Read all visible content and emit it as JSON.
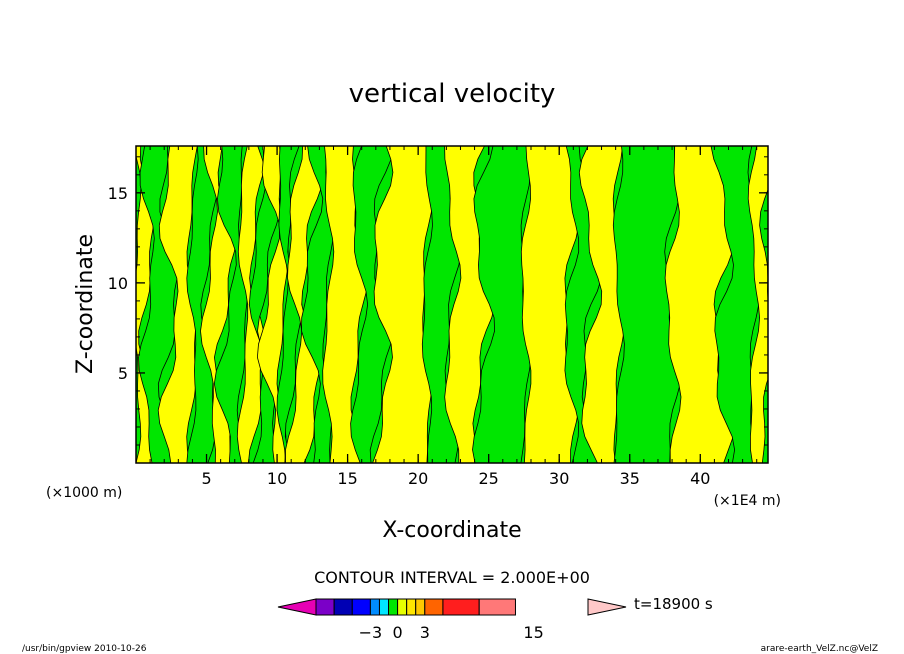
{
  "chart_data": {
    "type": "heatmap",
    "title": "vertical velocity",
    "xlabel": "X-coordinate",
    "ylabel": "Z-coordinate",
    "x_unit_left": "(×1000 m)",
    "x_unit_right": "(×1E4 m)",
    "xlim": [
      0,
      44.8
    ],
    "ylim": [
      0,
      17.6
    ],
    "x_ticks": [
      5,
      10,
      15,
      20,
      25,
      30,
      35,
      40
    ],
    "y_ticks": [
      5,
      10,
      15
    ],
    "contour_interval_label": "CONTOUR INTERVAL = 2.000E+00",
    "time_label": "t=18900 s",
    "colorbar": {
      "tick_labels": [
        {
          "value": -3,
          "label": "−3"
        },
        {
          "value": 0,
          "label": "0"
        },
        {
          "value": 3,
          "label": "3"
        },
        {
          "value": 15,
          "label": "15"
        }
      ],
      "levels": [
        -9,
        -7,
        -5,
        -3,
        -2,
        -1,
        0,
        1,
        2,
        3,
        5,
        9,
        13,
        17,
        21
      ],
      "colors": [
        "#e600b4",
        "#7b00c8",
        "#0000b4",
        "#0000ff",
        "#008cff",
        "#00e6ff",
        "#00e600",
        "#e6ff00",
        "#ffe600",
        "#ffc800",
        "#ff6400",
        "#ff1e1e",
        "#ff7878",
        "#ffc8c8"
      ]
    },
    "field_colors": {
      "negative": "#00e600",
      "positive": "#ffff00"
    },
    "bands": [
      {
        "x": [
          0.0,
          0.8
        ],
        "sign": "positive"
      },
      {
        "x": [
          0.8,
          2.4
        ],
        "sign": "negative"
      },
      {
        "x": [
          2.4,
          4.0
        ],
        "sign": "positive"
      },
      {
        "x": [
          4.0,
          5.2
        ],
        "sign": "negative"
      },
      {
        "x": [
          5.2,
          6.4
        ],
        "sign": "positive"
      },
      {
        "x": [
          6.4,
          7.6
        ],
        "sign": "negative"
      },
      {
        "x": [
          7.6,
          8.6
        ],
        "sign": "positive"
      },
      {
        "x": [
          8.6,
          9.4
        ],
        "sign": "negative"
      },
      {
        "x": [
          9.4,
          10.4
        ],
        "sign": "positive"
      },
      {
        "x": [
          10.4,
          11.2
        ],
        "sign": "negative"
      },
      {
        "x": [
          11.2,
          12.4
        ],
        "sign": "positive"
      },
      {
        "x": [
          12.4,
          13.6
        ],
        "sign": "negative"
      },
      {
        "x": [
          13.6,
          15.8
        ],
        "sign": "positive"
      },
      {
        "x": [
          15.8,
          17.4
        ],
        "sign": "negative"
      },
      {
        "x": [
          17.4,
          20.6
        ],
        "sign": "positive"
      },
      {
        "x": [
          20.6,
          22.4
        ],
        "sign": "negative"
      },
      {
        "x": [
          22.4,
          24.6
        ],
        "sign": "positive"
      },
      {
        "x": [
          24.6,
          27.6
        ],
        "sign": "negative"
      },
      {
        "x": [
          27.6,
          30.8
        ],
        "sign": "positive"
      },
      {
        "x": [
          30.8,
          32.2
        ],
        "sign": "negative"
      },
      {
        "x": [
          32.2,
          34.2
        ],
        "sign": "positive"
      },
      {
        "x": [
          34.2,
          38.0
        ],
        "sign": "negative"
      },
      {
        "x": [
          38.0,
          41.6
        ],
        "sign": "positive"
      },
      {
        "x": [
          41.6,
          43.8
        ],
        "sign": "negative"
      },
      {
        "x": [
          43.8,
          44.8
        ],
        "sign": "positive"
      }
    ]
  },
  "footer": {
    "left": "/usr/bin/gpview  2010-10-26",
    "right": "arare-earth_VelZ.nc@VelZ"
  }
}
